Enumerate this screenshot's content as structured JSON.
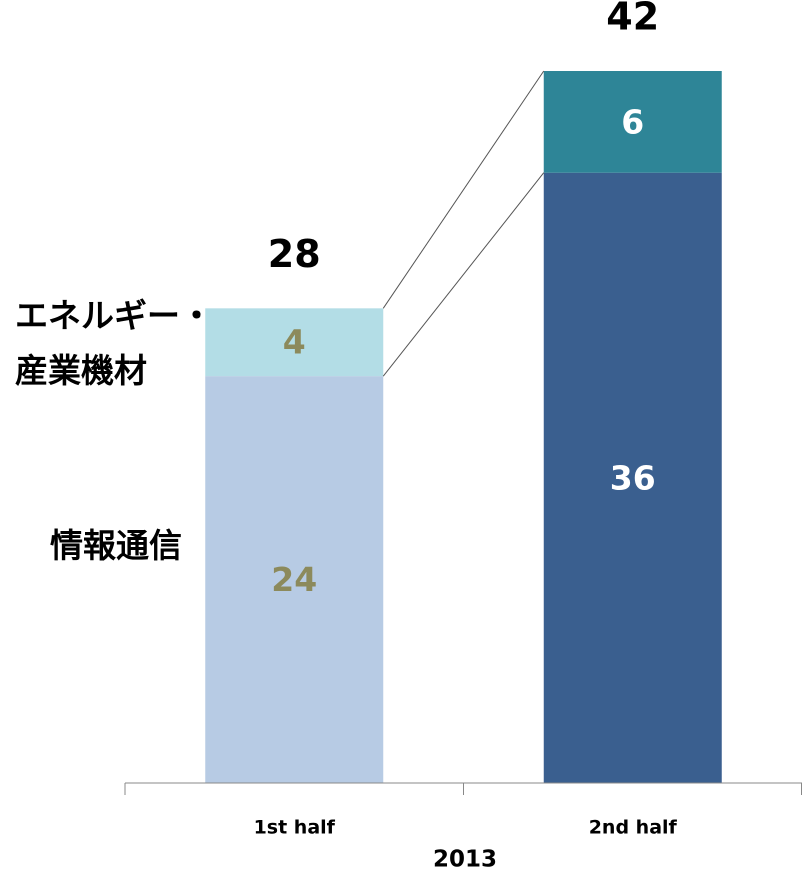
{
  "chart_data": {
    "type": "stacked_bar",
    "categories": [
      "1st half",
      "2nd half"
    ],
    "group_label": "2013",
    "totals": [
      28,
      42
    ],
    "series": [
      {
        "name": "情報通信",
        "values": [
          24,
          36
        ],
        "colors": [
          "#b7cbe4",
          "#3a5f8f"
        ],
        "label_colors": [
          "#8c8a5c",
          "#ffffff"
        ]
      },
      {
        "name": "エネルギー・\n産業機材",
        "values": [
          4,
          6
        ],
        "colors": [
          "#b3dde6",
          "#2e8597"
        ],
        "label_colors": [
          "#8c8a5c",
          "#ffffff"
        ]
      }
    ]
  }
}
